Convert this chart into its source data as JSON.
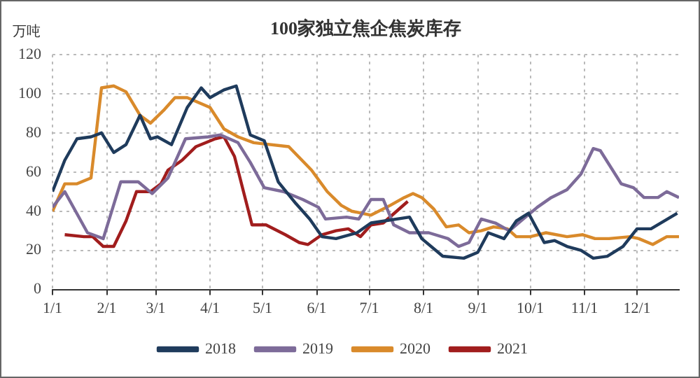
{
  "chart_data": {
    "type": "line",
    "title": "100家独立焦企焦炭库存",
    "ylabel": "万吨",
    "xlim": [
      "--01-01",
      "--12-25"
    ],
    "xticks": [
      {
        "value": "--01-01",
        "label": "1/1"
      },
      {
        "value": "--02-01",
        "label": "2/1"
      },
      {
        "value": "--03-01",
        "label": "3/1"
      },
      {
        "value": "--04-01",
        "label": "4/1"
      },
      {
        "value": "--05-01",
        "label": "5/1"
      },
      {
        "value": "--06-01",
        "label": "6/1"
      },
      {
        "value": "--07-01",
        "label": "7/1"
      },
      {
        "value": "--08-01",
        "label": "8/1"
      },
      {
        "value": "--09-01",
        "label": "9/1"
      },
      {
        "value": "--10-01",
        "label": "10/1"
      },
      {
        "value": "--11-01",
        "label": "11/1"
      },
      {
        "value": "--12-01",
        "label": "12/1"
      }
    ],
    "ylim": [
      0,
      120
    ],
    "yticks": [
      0,
      20,
      40,
      60,
      80,
      100,
      120
    ],
    "grid": true,
    "legend": "bottom",
    "marker": "none",
    "line_style": "solid",
    "series": [
      {
        "name": "2018",
        "color": "#1f3b5c",
        "x": [
          "--01-01",
          "--01-08",
          "--01-15",
          "--01-23",
          "--01-29",
          "--02-05",
          "--02-12",
          "--02-20",
          "--02-26",
          "--03-02",
          "--03-10",
          "--03-19",
          "--03-27",
          "--04-01",
          "--04-09",
          "--04-16",
          "--04-24",
          "--05-02",
          "--05-10",
          "--05-20",
          "--05-28",
          "--06-04",
          "--06-12",
          "--06-24",
          "--07-02",
          "--07-24",
          "--07-31",
          "--08-12",
          "--08-24",
          "--09-01",
          "--09-07",
          "--09-16",
          "--09-23",
          "--09-30",
          "--10-09",
          "--10-15",
          "--10-22",
          "--10-30",
          "--11-06",
          "--11-14",
          "--11-23",
          "--12-01",
          "--12-09",
          "--12-24"
        ],
        "values": [
          50,
          66,
          77,
          78,
          80,
          70,
          74,
          89,
          77,
          78,
          74,
          93,
          103,
          98,
          102,
          104,
          79,
          76,
          55,
          44,
          36,
          27,
          26,
          29,
          34,
          37,
          26,
          17,
          16,
          19,
          29,
          26,
          35,
          39,
          24,
          25,
          22,
          20,
          16,
          17,
          22,
          31,
          31,
          39
        ]
      },
      {
        "name": "2019",
        "color": "#7d6b99",
        "x": [
          "--01-01",
          "--01-08",
          "--01-21",
          "--01-30",
          "--02-09",
          "--02-19",
          "--02-27",
          "--03-08",
          "--03-18",
          "--03-31",
          "--04-07",
          "--04-17",
          "--04-24",
          "--05-02",
          "--05-13",
          "--05-24",
          "--06-02",
          "--06-06",
          "--06-18",
          "--06-25",
          "--07-02",
          "--07-09",
          "--07-15",
          "--07-24",
          "--08-04",
          "--08-15",
          "--08-21",
          "--08-27",
          "--09-03",
          "--09-11",
          "--09-19",
          "--09-27",
          "--10-05",
          "--10-13",
          "--10-22",
          "--10-30",
          "--11-06",
          "--11-10",
          "--11-22",
          "--11-29",
          "--12-05",
          "--12-13",
          "--12-18",
          "--12-25"
        ],
        "values": [
          42,
          50,
          29,
          26,
          55,
          55,
          49,
          57,
          77,
          78,
          79,
          75,
          65,
          52,
          50,
          46,
          42,
          36,
          37,
          36,
          46,
          46,
          33,
          29,
          29,
          26,
          22,
          24,
          36,
          34,
          30,
          36,
          42,
          47,
          51,
          59,
          72,
          71,
          54,
          52,
          47,
          47,
          50,
          47
        ]
      },
      {
        "name": "2020",
        "color": "#d98a2b",
        "x": [
          "--01-01",
          "--01-08",
          "--01-15",
          "--01-23",
          "--01-29",
          "--02-05",
          "--02-12",
          "--02-20",
          "--02-26",
          "--03-06",
          "--03-12",
          "--03-19",
          "--04-01",
          "--04-09",
          "--04-17",
          "--04-26",
          "--05-16",
          "--05-29",
          "--06-07",
          "--06-15",
          "--06-21",
          "--07-02",
          "--07-13",
          "--07-21",
          "--07-26",
          "--07-31",
          "--08-07",
          "--08-14",
          "--08-21",
          "--08-27",
          "--09-03",
          "--09-10",
          "--09-18",
          "--09-23",
          "--10-01",
          "--10-10",
          "--10-22",
          "--10-31",
          "--11-07",
          "--11-15",
          "--11-27",
          "--12-02",
          "--12-10",
          "--12-18",
          "--12-25"
        ],
        "values": [
          40,
          54,
          54,
          57,
          103,
          104,
          101,
          89,
          85,
          92,
          98,
          98,
          93,
          82,
          78,
          75,
          73,
          61,
          50,
          43,
          40,
          38,
          43,
          47,
          49,
          47,
          41,
          32,
          33,
          29,
          30,
          32,
          31,
          27,
          27,
          29,
          27,
          28,
          26,
          26,
          27,
          26,
          23,
          27,
          27
        ]
      },
      {
        "name": "2021",
        "color": "#a11d1d",
        "x": [
          "--01-08",
          "--01-19",
          "--01-24",
          "--01-30",
          "--02-05",
          "--02-12",
          "--02-18",
          "--02-26",
          "--03-04",
          "--03-08",
          "--03-16",
          "--03-24",
          "--04-04",
          "--04-09",
          "--04-15",
          "--04-25",
          "--05-03",
          "--05-14",
          "--05-22",
          "--05-27",
          "--06-04",
          "--06-12",
          "--06-19",
          "--06-26",
          "--07-02",
          "--07-09",
          "--07-23"
        ],
        "values": [
          28,
          27,
          27,
          22,
          22,
          35,
          50,
          50,
          54,
          61,
          66,
          73,
          77,
          78,
          68,
          33,
          33,
          28,
          24,
          23,
          28,
          30,
          31,
          27,
          33,
          34,
          45
        ]
      }
    ]
  }
}
